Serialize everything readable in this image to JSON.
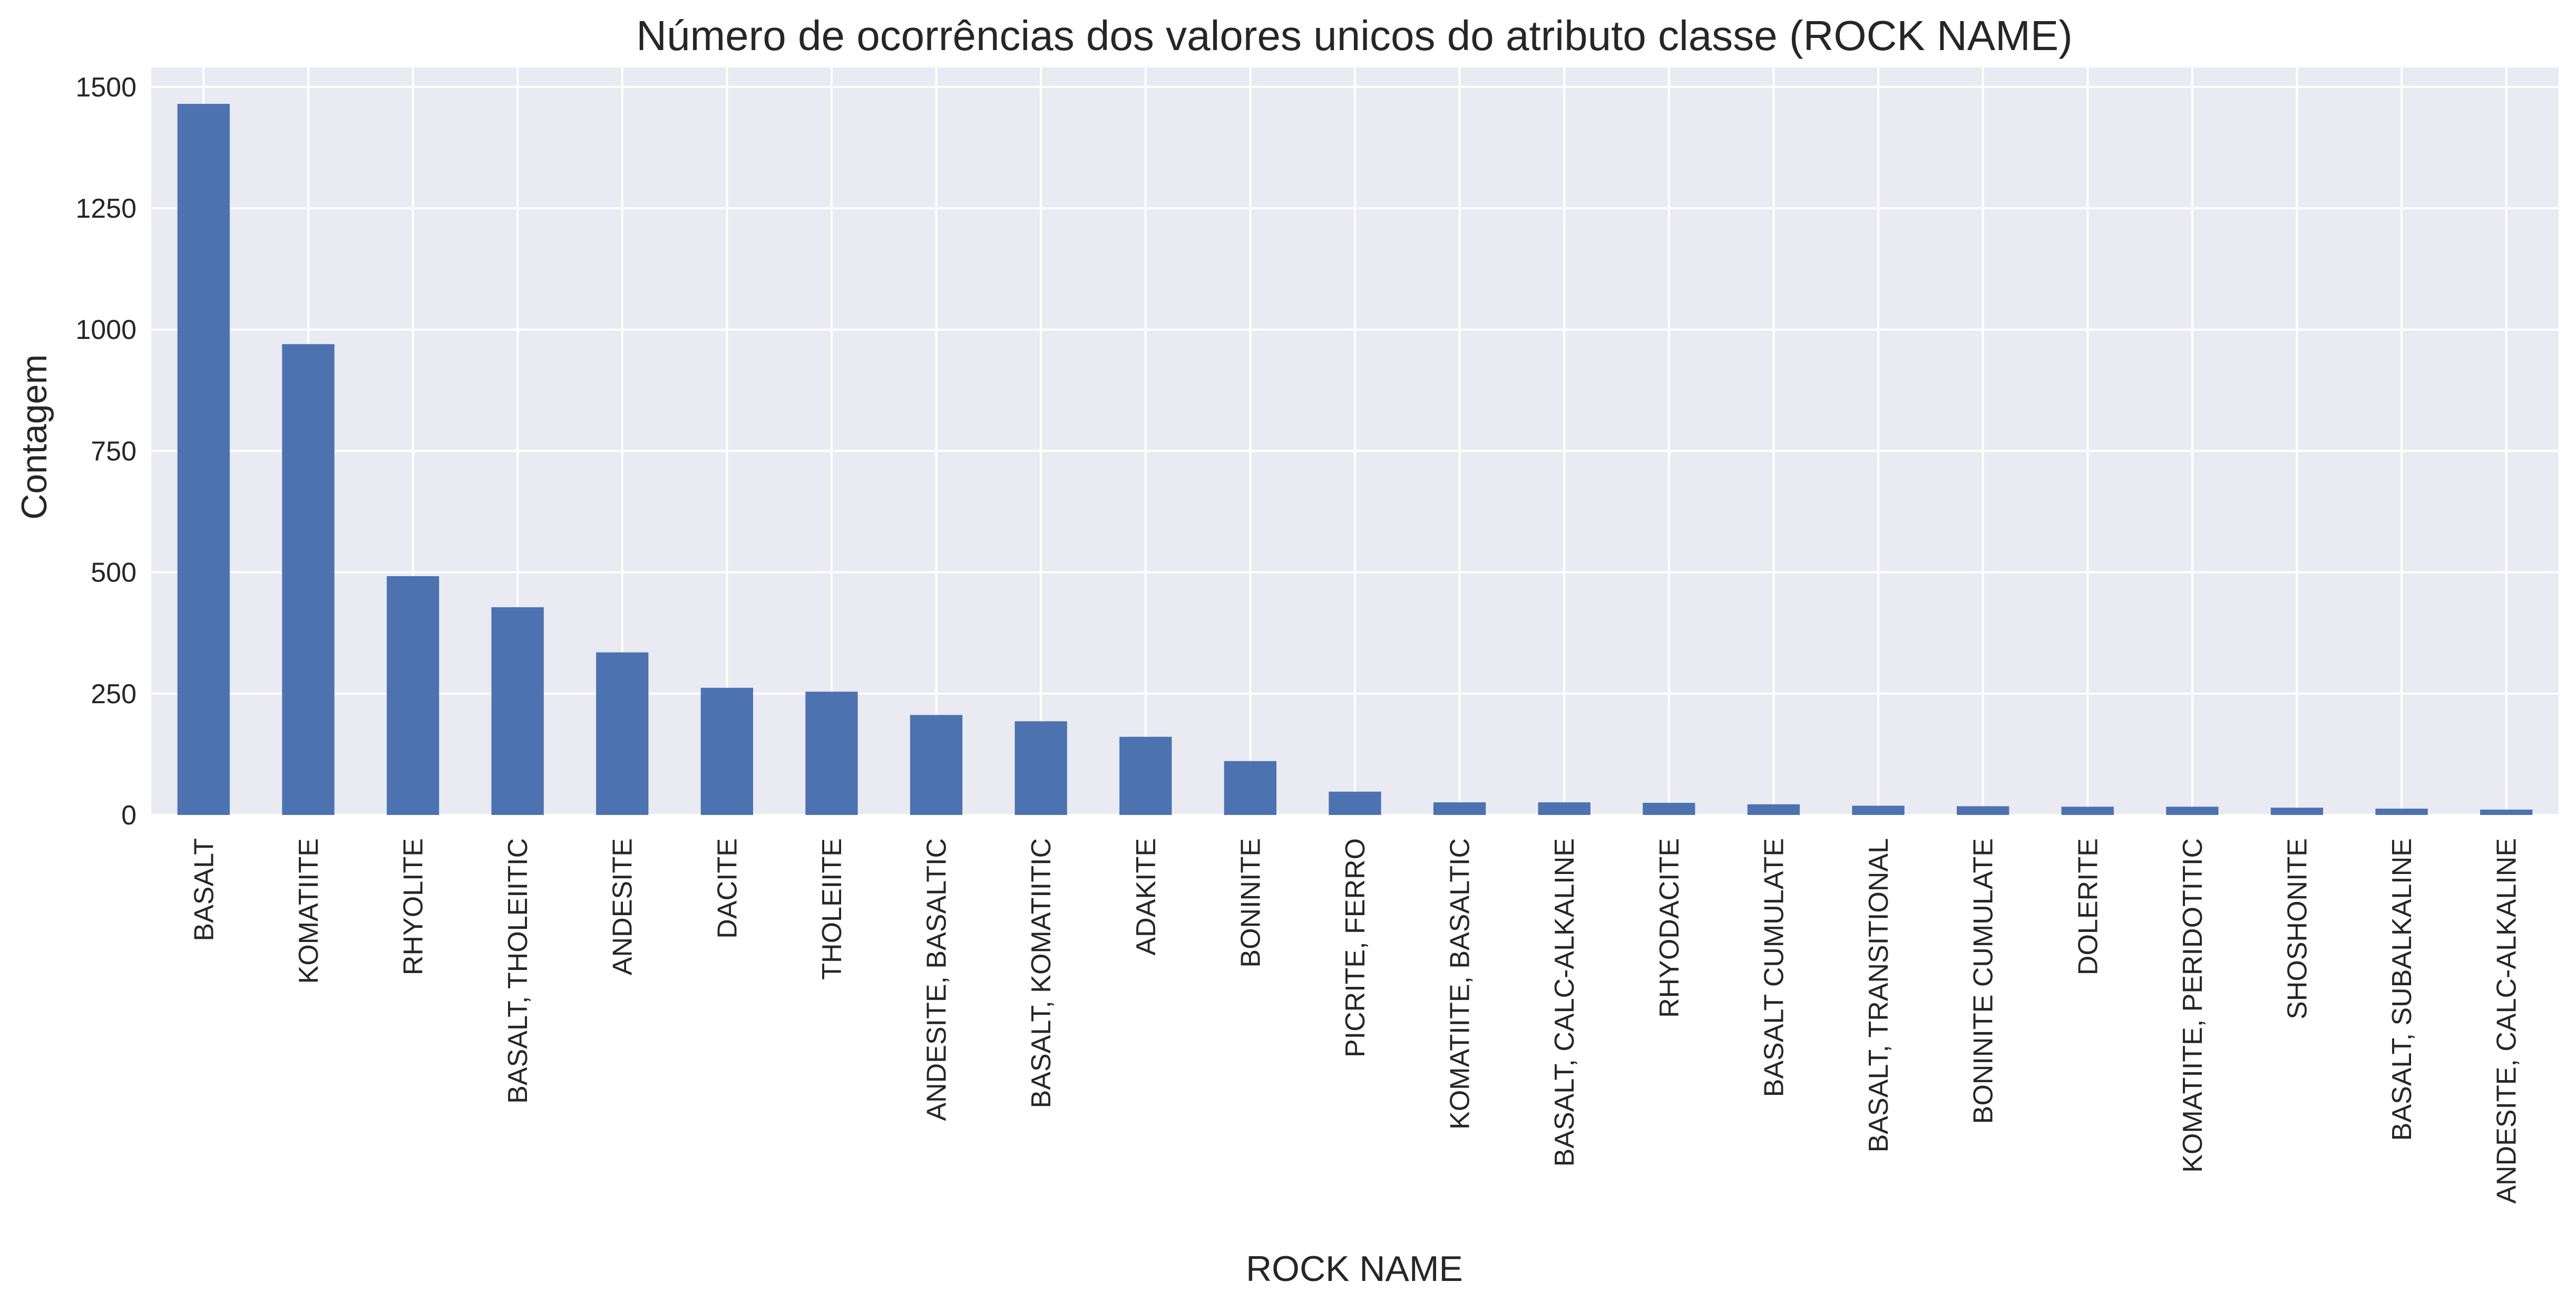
{
  "chart_data": {
    "type": "bar",
    "title": "Número de ocorrências dos valores unicos do atributo classe (ROCK NAME)",
    "xlabel": "ROCK NAME",
    "ylabel": "Contagem",
    "ylim": [
      0,
      1540
    ],
    "yticks": [
      0,
      250,
      500,
      750,
      1000,
      1250,
      1500
    ],
    "grid": true,
    "legend": "none",
    "bar_color": "#4c72b0",
    "background_color": "#eaeaf2",
    "grid_color": "#ffffff",
    "categories": [
      "BASALT",
      "KOMATIITE",
      "RHYOLITE",
      "BASALT, THOLEIITIC",
      "ANDESITE",
      "DACITE",
      "THOLEIITE",
      "ANDESITE, BASALTIC",
      "BASALT, KOMATIITIC",
      "ADAKITE",
      "BONINITE",
      "PICRITE, FERRO",
      "KOMATIITE, BASALTIC",
      "BASALT, CALC-ALKALINE",
      "RHYODACITE",
      "BASALT CUMULATE",
      "BASALT, TRANSITIONAL",
      "BONINITE CUMULATE",
      "DOLERITE",
      "KOMATIITE, PERIDOTITIC",
      "SHOSHONITE",
      "BASALT, SUBALKALINE",
      "ANDESITE, CALC-ALKALINE"
    ],
    "values": [
      1465,
      970,
      492,
      428,
      335,
      262,
      254,
      206,
      193,
      161,
      111,
      48,
      26,
      26,
      25,
      22,
      19,
      18,
      17,
      17,
      15,
      13,
      11
    ]
  }
}
